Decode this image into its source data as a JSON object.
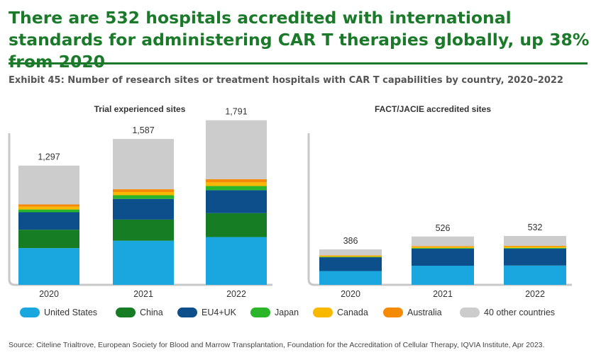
{
  "header": {
    "headline": "There are 532 hospitals accredited with international standards for administering CAR T therapies globally, up 38% from 2020",
    "exhibit": "Exhibit 45: Number of research sites or treatment hospitals with CAR T capabilities by country, 2020–2022"
  },
  "colors": {
    "United States": "#1aa7e0",
    "China": "#167d25",
    "EU4+UK": "#0c4f8a",
    "Japan": "#2bb52b",
    "Canada": "#f9b800",
    "Australia": "#f58a07",
    "40 other countries": "#cccccc",
    "headline": "#1b7a2a",
    "axis": "#c8c8c8"
  },
  "chart_data": [
    {
      "type": "bar",
      "stacked": true,
      "title": "Trial experienced sites",
      "categories": [
        "2020",
        "2021",
        "2022"
      ],
      "totals": [
        "1,297",
        "1,587",
        "1,791"
      ],
      "ylim": [
        0,
        1850
      ],
      "series": [
        {
          "name": "United States",
          "values": [
            400,
            480,
            520
          ]
        },
        {
          "name": "China",
          "values": [
            200,
            230,
            260
          ]
        },
        {
          "name": "EU4+UK",
          "values": [
            190,
            225,
            250
          ]
        },
        {
          "name": "Japan",
          "values": [
            30,
            40,
            45
          ]
        },
        {
          "name": "Canada",
          "values": [
            30,
            35,
            40
          ]
        },
        {
          "name": "Australia",
          "values": [
            25,
            30,
            35
          ]
        },
        {
          "name": "40 other countries",
          "values": [
            422,
            547,
            641
          ]
        }
      ]
    },
    {
      "type": "bar",
      "stacked": true,
      "title": "FACT/JACIE accredited sites",
      "categories": [
        "2020",
        "2021",
        "2022"
      ],
      "totals": [
        "386",
        "526",
        "532"
      ],
      "ylim": [
        0,
        1850
      ],
      "series": [
        {
          "name": "United States",
          "values": [
            150,
            208,
            210
          ]
        },
        {
          "name": "China",
          "values": [
            0,
            0,
            0
          ]
        },
        {
          "name": "EU4+UK",
          "values": [
            150,
            185,
            185
          ]
        },
        {
          "name": "Japan",
          "values": [
            5,
            7,
            7
          ]
        },
        {
          "name": "Canada",
          "values": [
            12,
            15,
            15
          ]
        },
        {
          "name": "Australia",
          "values": [
            5,
            7,
            7
          ]
        },
        {
          "name": "40 other countries",
          "values": [
            64,
            104,
            108
          ]
        }
      ]
    }
  ],
  "legend": [
    "United States",
    "China",
    "EU4+UK",
    "Japan",
    "Canada",
    "Australia",
    "40 other countries"
  ],
  "source": "Source: Citeline Trialtrove, European Society for Blood and Marrow Transplantation, Foundation for the Accreditation of Cellular Therapy, IQVIA Institute, Apr 2023."
}
